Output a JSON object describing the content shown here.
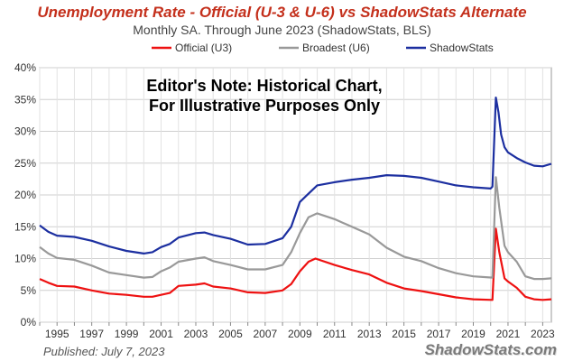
{
  "chart_data": {
    "type": "line",
    "title": "Unemployment Rate - Official (U-3 & U-6) vs ShadowStats Alternate",
    "subtitle": "Monthly SA. Through June 2023  (ShadowStats, BLS)",
    "annotation": [
      "Editor's Note: Historical Chart,",
      "For Illustrative Purposes Only"
    ],
    "published": "Published: July 7, 2023",
    "brand": "ShadowStats.com",
    "xlabel": "",
    "ylabel": "",
    "xlim": [
      1994.0,
      2023.5
    ],
    "ylim": [
      0,
      40
    ],
    "yticks": [
      0,
      5,
      10,
      15,
      20,
      25,
      30,
      35,
      40
    ],
    "ytick_labels": [
      "0%",
      "5%",
      "10%",
      "15%",
      "20%",
      "25%",
      "30%",
      "35%",
      "40%"
    ],
    "xticks": [
      1995,
      1997,
      1999,
      2001,
      2003,
      2005,
      2007,
      2009,
      2011,
      2013,
      2015,
      2017,
      2019,
      2021,
      2023
    ],
    "grid": true,
    "legend_position": "top-center",
    "series": [
      {
        "name": "Official (U3)",
        "color": "#ee1111",
        "points": [
          [
            1994.0,
            6.8
          ],
          [
            1994.5,
            6.2
          ],
          [
            1995.0,
            5.7
          ],
          [
            1996.0,
            5.6
          ],
          [
            1997.0,
            5.0
          ],
          [
            1998.0,
            4.5
          ],
          [
            1999.0,
            4.3
          ],
          [
            2000.0,
            4.0
          ],
          [
            2000.5,
            4.0
          ],
          [
            2001.0,
            4.3
          ],
          [
            2001.5,
            4.6
          ],
          [
            2002.0,
            5.7
          ],
          [
            2003.0,
            5.9
          ],
          [
            2003.5,
            6.1
          ],
          [
            2004.0,
            5.6
          ],
          [
            2005.0,
            5.3
          ],
          [
            2006.0,
            4.7
          ],
          [
            2007.0,
            4.6
          ],
          [
            2008.0,
            5.0
          ],
          [
            2008.5,
            6.0
          ],
          [
            2009.0,
            8.0
          ],
          [
            2009.5,
            9.5
          ],
          [
            2009.9,
            10.0
          ],
          [
            2011.0,
            9.0
          ],
          [
            2012.0,
            8.2
          ],
          [
            2013.0,
            7.5
          ],
          [
            2014.0,
            6.2
          ],
          [
            2015.0,
            5.3
          ],
          [
            2016.0,
            4.9
          ],
          [
            2017.0,
            4.4
          ],
          [
            2018.0,
            3.9
          ],
          [
            2019.0,
            3.6
          ],
          [
            2020.1,
            3.5
          ],
          [
            2020.3,
            14.7
          ],
          [
            2020.5,
            11.0
          ],
          [
            2020.8,
            6.9
          ],
          [
            2021.0,
            6.4
          ],
          [
            2021.5,
            5.4
          ],
          [
            2022.0,
            4.0
          ],
          [
            2022.5,
            3.6
          ],
          [
            2023.0,
            3.5
          ],
          [
            2023.5,
            3.6
          ]
        ]
      },
      {
        "name": "Broadest (U6)",
        "color": "#999999",
        "points": [
          [
            1994.0,
            11.8
          ],
          [
            1994.5,
            10.8
          ],
          [
            1995.0,
            10.1
          ],
          [
            1996.0,
            9.8
          ],
          [
            1997.0,
            8.9
          ],
          [
            1998.0,
            7.8
          ],
          [
            1999.0,
            7.4
          ],
          [
            2000.0,
            7.0
          ],
          [
            2000.5,
            7.1
          ],
          [
            2001.0,
            8.0
          ],
          [
            2001.5,
            8.6
          ],
          [
            2002.0,
            9.5
          ],
          [
            2003.0,
            10.0
          ],
          [
            2003.5,
            10.2
          ],
          [
            2004.0,
            9.6
          ],
          [
            2005.0,
            9.0
          ],
          [
            2006.0,
            8.3
          ],
          [
            2007.0,
            8.3
          ],
          [
            2008.0,
            9.0
          ],
          [
            2008.5,
            11.0
          ],
          [
            2009.0,
            14.0
          ],
          [
            2009.5,
            16.5
          ],
          [
            2010.0,
            17.1
          ],
          [
            2011.0,
            16.2
          ],
          [
            2012.0,
            15.0
          ],
          [
            2013.0,
            13.8
          ],
          [
            2014.0,
            11.7
          ],
          [
            2015.0,
            10.3
          ],
          [
            2016.0,
            9.6
          ],
          [
            2017.0,
            8.5
          ],
          [
            2018.0,
            7.7
          ],
          [
            2019.0,
            7.2
          ],
          [
            2020.1,
            7.0
          ],
          [
            2020.3,
            22.8
          ],
          [
            2020.5,
            18.0
          ],
          [
            2020.8,
            12.0
          ],
          [
            2021.0,
            11.0
          ],
          [
            2021.5,
            9.5
          ],
          [
            2022.0,
            7.2
          ],
          [
            2022.5,
            6.8
          ],
          [
            2023.0,
            6.8
          ],
          [
            2023.5,
            6.9
          ]
        ]
      },
      {
        "name": "ShadowStats",
        "color": "#1c2fa0",
        "points": [
          [
            1994.0,
            15.2
          ],
          [
            1994.5,
            14.2
          ],
          [
            1995.0,
            13.6
          ],
          [
            1996.0,
            13.4
          ],
          [
            1997.0,
            12.8
          ],
          [
            1998.0,
            11.9
          ],
          [
            1999.0,
            11.2
          ],
          [
            2000.0,
            10.8
          ],
          [
            2000.5,
            11.0
          ],
          [
            2001.0,
            11.8
          ],
          [
            2001.5,
            12.3
          ],
          [
            2002.0,
            13.3
          ],
          [
            2003.0,
            14.0
          ],
          [
            2003.5,
            14.1
          ],
          [
            2004.0,
            13.7
          ],
          [
            2005.0,
            13.1
          ],
          [
            2006.0,
            12.2
          ],
          [
            2007.0,
            12.3
          ],
          [
            2008.0,
            13.2
          ],
          [
            2008.5,
            15.0
          ],
          [
            2009.0,
            18.9
          ],
          [
            2009.5,
            20.2
          ],
          [
            2010.0,
            21.5
          ],
          [
            2011.0,
            22.0
          ],
          [
            2012.0,
            22.4
          ],
          [
            2013.0,
            22.7
          ],
          [
            2014.0,
            23.1
          ],
          [
            2015.0,
            23.0
          ],
          [
            2016.0,
            22.7
          ],
          [
            2017.0,
            22.1
          ],
          [
            2018.0,
            21.5
          ],
          [
            2019.0,
            21.2
          ],
          [
            2020.0,
            21.0
          ],
          [
            2020.1,
            21.3
          ],
          [
            2020.3,
            35.3
          ],
          [
            2020.45,
            33.0
          ],
          [
            2020.6,
            29.5
          ],
          [
            2020.8,
            27.5
          ],
          [
            2021.0,
            26.7
          ],
          [
            2021.5,
            25.8
          ],
          [
            2022.0,
            25.1
          ],
          [
            2022.5,
            24.6
          ],
          [
            2023.0,
            24.5
          ],
          [
            2023.5,
            24.9
          ]
        ]
      }
    ]
  }
}
